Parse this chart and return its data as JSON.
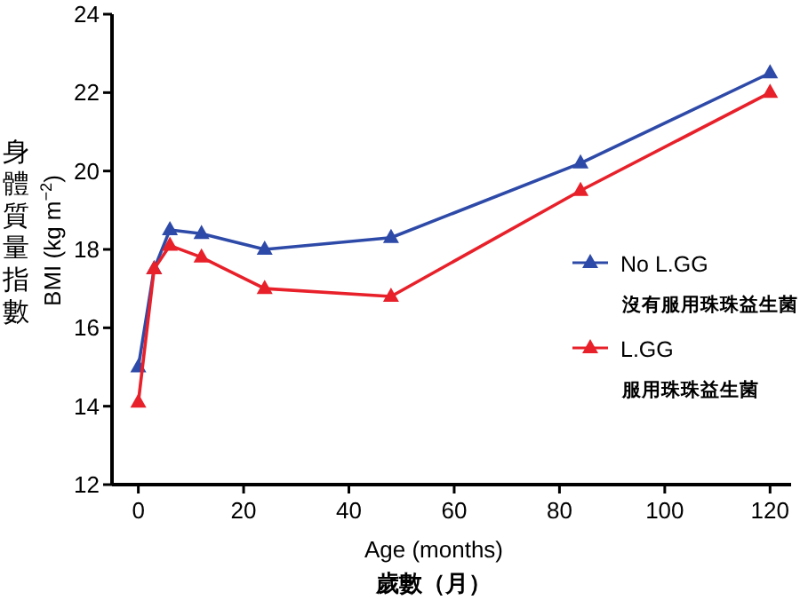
{
  "chart_data": {
    "type": "line",
    "xlabel": "Age (months)\n歲數（月）",
    "ylabel": "BMI (kg m$^{−2}$)",
    "annotations": [
      "身體質量指數"
    ],
    "x": [
      0,
      3,
      6,
      12,
      24,
      48,
      84,
      120
    ],
    "series": [
      {
        "name": "No L.GG\n沒有服用珠珠益生菌",
        "color": "#2e4aa8",
        "values": [
          15,
          17.5,
          18.5,
          18.4,
          18,
          18.3,
          20.2,
          22.5
        ]
      },
      {
        "name": "L.GG\n服用珠珠益生菌",
        "color": "#e8202a",
        "values": [
          14.1,
          17.5,
          18.1,
          17.8,
          17,
          16.8,
          19.5,
          22
        ]
      }
    ],
    "xlim": [
      -5,
      124
    ],
    "ylim": [
      12,
      24
    ],
    "xticks": [
      0,
      20,
      40,
      60,
      80,
      100,
      120
    ],
    "yticks": [
      12,
      14,
      16,
      18,
      20,
      22,
      24
    ],
    "grid": false,
    "legend": "right",
    "marker": "triangle",
    "line_style": "solid"
  }
}
